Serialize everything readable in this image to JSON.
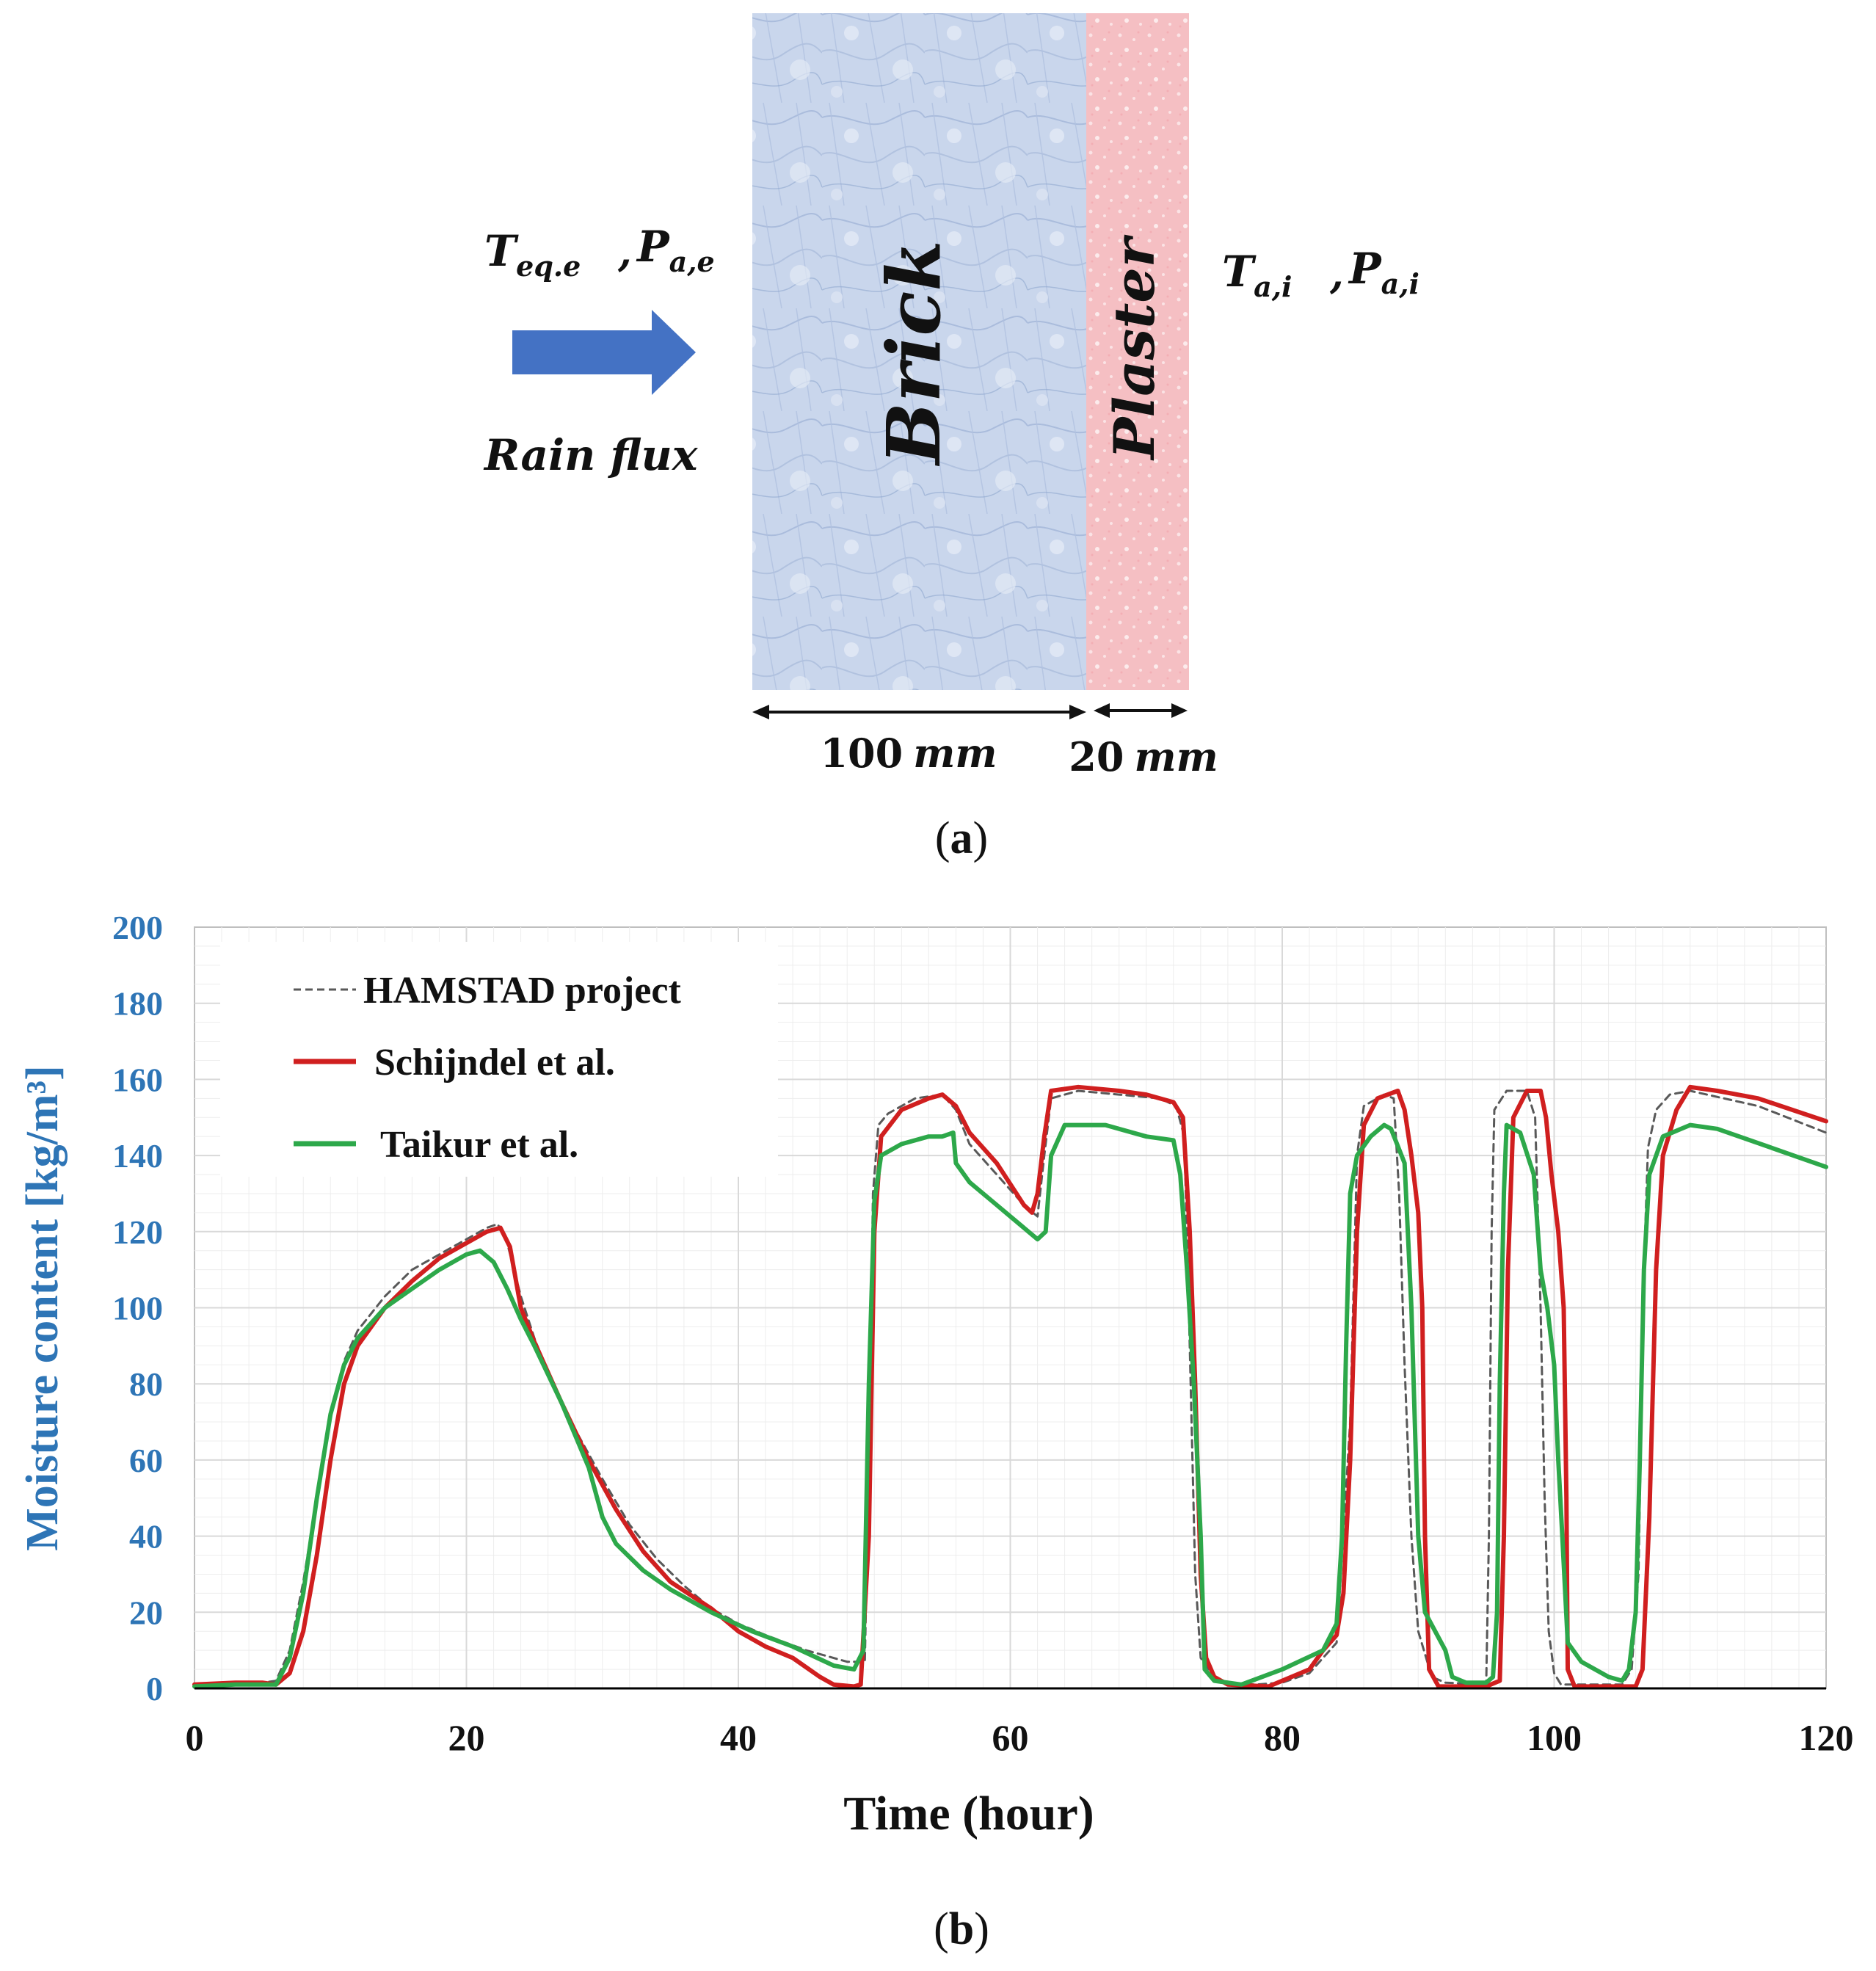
{
  "panel_a": {
    "caption_open": "(",
    "caption_letter": "a",
    "caption_close": ")",
    "ext_temp_symbol": "T",
    "ext_temp_sub": "eq.e",
    "ext_sep": ",",
    "ext_press_symbol": "P",
    "ext_press_sub": "a,e",
    "int_temp_symbol": "T",
    "int_temp_sub": "a,i",
    "int_sep": ",",
    "int_press_symbol": "P",
    "int_press_sub": "a,i",
    "rain_label": "Rain flux",
    "brick_label": "Brick",
    "plaster_label": "Plaster",
    "brick_thickness_value": "100",
    "brick_thickness_unit": "mm",
    "plaster_thickness_value": "20",
    "plaster_thickness_unit": "mm",
    "colors": {
      "arrow": "#4472C4",
      "brick": "#C5D2EA",
      "brick_texture": "#8FA6CF",
      "plaster": "#F6C3C6",
      "plaster_texture": "#FBE4E6"
    }
  },
  "panel_b": {
    "caption_open": "(",
    "caption_letter": "b",
    "caption_close": ")"
  },
  "chart_data": {
    "type": "line",
    "title": "",
    "xlabel": "Time (hour)",
    "ylabel": "Moisture content [kg/m³]",
    "xlim": [
      0,
      120
    ],
    "ylim": [
      0,
      200
    ],
    "xticks": [
      0,
      20,
      40,
      60,
      80,
      100,
      120
    ],
    "yticks": [
      0,
      20,
      40,
      60,
      80,
      100,
      120,
      140,
      160,
      180,
      200
    ],
    "grid": true,
    "legend_position": "top-left",
    "colors": {
      "ylabel": "#2E75B6",
      "yticks": "#2E75B6",
      "grid": "#D9D9D9"
    },
    "series": [
      {
        "name": "HAMSTAD project",
        "color": "#595959",
        "style": "dashed",
        "points": [
          [
            0,
            0.5
          ],
          [
            4,
            1
          ],
          [
            6,
            2
          ],
          [
            7,
            10
          ],
          [
            8,
            28
          ],
          [
            9,
            50
          ],
          [
            10,
            72
          ],
          [
            11,
            86
          ],
          [
            12,
            94
          ],
          [
            14,
            103
          ],
          [
            16,
            110
          ],
          [
            18,
            114
          ],
          [
            20,
            118
          ],
          [
            21.5,
            121
          ],
          [
            22.3,
            122
          ],
          [
            23,
            117
          ],
          [
            24,
            103
          ],
          [
            25,
            92
          ],
          [
            26,
            83
          ],
          [
            28,
            68
          ],
          [
            30,
            55
          ],
          [
            32,
            43
          ],
          [
            34,
            34
          ],
          [
            36,
            27
          ],
          [
            38,
            21
          ],
          [
            40,
            17
          ],
          [
            42,
            14
          ],
          [
            45,
            10
          ],
          [
            48,
            7
          ],
          [
            49.3,
            7
          ],
          [
            49.6,
            60
          ],
          [
            49.9,
            130
          ],
          [
            50.3,
            148
          ],
          [
            51,
            151
          ],
          [
            53,
            155
          ],
          [
            55,
            156
          ],
          [
            56,
            152
          ],
          [
            57,
            143
          ],
          [
            59,
            135
          ],
          [
            61,
            127
          ],
          [
            62,
            124
          ],
          [
            62.5,
            140
          ],
          [
            63,
            155
          ],
          [
            65,
            157
          ],
          [
            68,
            156
          ],
          [
            71,
            155
          ],
          [
            72.2,
            153
          ],
          [
            72.8,
            145
          ],
          [
            73.2,
            90
          ],
          [
            73.6,
            30
          ],
          [
            74,
            8
          ],
          [
            75,
            3
          ],
          [
            76,
            1.5
          ],
          [
            78,
            1
          ],
          [
            80,
            1.5
          ],
          [
            82,
            4
          ],
          [
            84,
            12
          ],
          [
            85,
            70
          ],
          [
            85.5,
            140
          ],
          [
            86,
            153
          ],
          [
            87.5,
            156
          ],
          [
            88.2,
            155
          ],
          [
            88.6,
            130
          ],
          [
            89,
            85
          ],
          [
            89.5,
            40
          ],
          [
            90,
            15
          ],
          [
            91,
            3
          ],
          [
            92,
            1.5
          ],
          [
            95,
            1
          ],
          [
            95.2,
            40
          ],
          [
            95.4,
            120
          ],
          [
            95.6,
            152
          ],
          [
            96.5,
            157
          ],
          [
            98,
            157
          ],
          [
            98.6,
            150
          ],
          [
            99,
            100
          ],
          [
            99.3,
            50
          ],
          [
            99.6,
            15
          ],
          [
            100,
            4
          ],
          [
            100.5,
            1
          ],
          [
            105,
            1
          ],
          [
            105.7,
            5
          ],
          [
            106.2,
            30
          ],
          [
            106.6,
            110
          ],
          [
            106.9,
            142
          ],
          [
            107.5,
            152
          ],
          [
            108.5,
            156
          ],
          [
            110,
            157
          ],
          [
            115,
            153
          ],
          [
            120,
            146
          ]
        ]
      },
      {
        "name": "Schijndel et al.",
        "color": "#D01F1F",
        "style": "solid",
        "points": [
          [
            0,
            1
          ],
          [
            3,
            1.5
          ],
          [
            5,
            1.5
          ],
          [
            6,
            1
          ],
          [
            7,
            4
          ],
          [
            8,
            15
          ],
          [
            9,
            35
          ],
          [
            10,
            60
          ],
          [
            11,
            80
          ],
          [
            12,
            90
          ],
          [
            14,
            100
          ],
          [
            16,
            107
          ],
          [
            18,
            113
          ],
          [
            20,
            117
          ],
          [
            21.5,
            120
          ],
          [
            22.5,
            121
          ],
          [
            23.2,
            116
          ],
          [
            24,
            100
          ],
          [
            25,
            91
          ],
          [
            27,
            75
          ],
          [
            29,
            60
          ],
          [
            31,
            47
          ],
          [
            33,
            36
          ],
          [
            35,
            28
          ],
          [
            38,
            21
          ],
          [
            40,
            15
          ],
          [
            42,
            11
          ],
          [
            44,
            8
          ],
          [
            46,
            3
          ],
          [
            47,
            1
          ],
          [
            48.5,
            0.5
          ],
          [
            49,
            1
          ],
          [
            49.6,
            40
          ],
          [
            50,
            120
          ],
          [
            50.5,
            145
          ],
          [
            52,
            152
          ],
          [
            54,
            155
          ],
          [
            55,
            156
          ],
          [
            56,
            153
          ],
          [
            57,
            146
          ],
          [
            59,
            138
          ],
          [
            61,
            127
          ],
          [
            61.6,
            125
          ],
          [
            62,
            130
          ],
          [
            62.5,
            145
          ],
          [
            63,
            157
          ],
          [
            65,
            158
          ],
          [
            68,
            157
          ],
          [
            70,
            156
          ],
          [
            72,
            154
          ],
          [
            72.7,
            150
          ],
          [
            73.2,
            120
          ],
          [
            73.6,
            80
          ],
          [
            74,
            30
          ],
          [
            74.4,
            8
          ],
          [
            75,
            3
          ],
          [
            76,
            1
          ],
          [
            79,
            0.5
          ],
          [
            82,
            5
          ],
          [
            83,
            10
          ],
          [
            84,
            14
          ],
          [
            84.5,
            25
          ],
          [
            85,
            60
          ],
          [
            85.5,
            120
          ],
          [
            86,
            148
          ],
          [
            87,
            155
          ],
          [
            88.5,
            157
          ],
          [
            89,
            152
          ],
          [
            89.5,
            140
          ],
          [
            90,
            125
          ],
          [
            90.3,
            100
          ],
          [
            90.5,
            40
          ],
          [
            90.8,
            5
          ],
          [
            91.5,
            0.5
          ],
          [
            95,
            0.5
          ],
          [
            96,
            2
          ],
          [
            96.3,
            40
          ],
          [
            96.6,
            110
          ],
          [
            97,
            150
          ],
          [
            98,
            157
          ],
          [
            99,
            157
          ],
          [
            99.4,
            150
          ],
          [
            99.8,
            135
          ],
          [
            100.3,
            120
          ],
          [
            100.7,
            100
          ],
          [
            100.9,
            50
          ],
          [
            101,
            5
          ],
          [
            101.5,
            0.5
          ],
          [
            106,
            0.5
          ],
          [
            106.5,
            5
          ],
          [
            107,
            45
          ],
          [
            107.5,
            110
          ],
          [
            108,
            140
          ],
          [
            109,
            152
          ],
          [
            110,
            158
          ],
          [
            112,
            157
          ],
          [
            115,
            155
          ],
          [
            120,
            149
          ]
        ]
      },
      {
        "name": "Taikur et al.",
        "color": "#2DA84A",
        "style": "solid",
        "points": [
          [
            0,
            0.5
          ],
          [
            3,
            1
          ],
          [
            5,
            1
          ],
          [
            6,
            1
          ],
          [
            7,
            8
          ],
          [
            8,
            25
          ],
          [
            9,
            50
          ],
          [
            10,
            72
          ],
          [
            11,
            85
          ],
          [
            12,
            92
          ],
          [
            14,
            100
          ],
          [
            16,
            105
          ],
          [
            18,
            110
          ],
          [
            20,
            114
          ],
          [
            21,
            115
          ],
          [
            22,
            112
          ],
          [
            23,
            105
          ],
          [
            24,
            97
          ],
          [
            25,
            90
          ],
          [
            27,
            75
          ],
          [
            29,
            58
          ],
          [
            30,
            45
          ],
          [
            31,
            38
          ],
          [
            33,
            31
          ],
          [
            35,
            26
          ],
          [
            38,
            20
          ],
          [
            41,
            15
          ],
          [
            44,
            11
          ],
          [
            47,
            6
          ],
          [
            48.5,
            5
          ],
          [
            49.2,
            10
          ],
          [
            49.6,
            80
          ],
          [
            50,
            128
          ],
          [
            50.5,
            140
          ],
          [
            52,
            143
          ],
          [
            54,
            145
          ],
          [
            55,
            145
          ],
          [
            55.8,
            146
          ],
          [
            56,
            138
          ],
          [
            57,
            133
          ],
          [
            59,
            127
          ],
          [
            61,
            121
          ],
          [
            62,
            118
          ],
          [
            62.6,
            120
          ],
          [
            63,
            140
          ],
          [
            64,
            148
          ],
          [
            67,
            148
          ],
          [
            70,
            145
          ],
          [
            72,
            144
          ],
          [
            72.5,
            135
          ],
          [
            73,
            110
          ],
          [
            73.5,
            80
          ],
          [
            74,
            40
          ],
          [
            74.3,
            5
          ],
          [
            75,
            2
          ],
          [
            77,
            1
          ],
          [
            80,
            5
          ],
          [
            83,
            10
          ],
          [
            84,
            17
          ],
          [
            84.4,
            40
          ],
          [
            84.7,
            90
          ],
          [
            85,
            130
          ],
          [
            85.5,
            140
          ],
          [
            86.5,
            145
          ],
          [
            87.5,
            148
          ],
          [
            88,
            147
          ],
          [
            89,
            138
          ],
          [
            89.5,
            100
          ],
          [
            90,
            40
          ],
          [
            90.5,
            20
          ],
          [
            92,
            10
          ],
          [
            92.5,
            3
          ],
          [
            93.5,
            1.5
          ],
          [
            95,
            1.5
          ],
          [
            95.5,
            3
          ],
          [
            95.8,
            20
          ],
          [
            96,
            80
          ],
          [
            96.3,
            130
          ],
          [
            96.5,
            148
          ],
          [
            97.5,
            146
          ],
          [
            98.5,
            135
          ],
          [
            99,
            110
          ],
          [
            99.5,
            100
          ],
          [
            100,
            85
          ],
          [
            100.3,
            60
          ],
          [
            100.6,
            40
          ],
          [
            101,
            12
          ],
          [
            102,
            7
          ],
          [
            104,
            3
          ],
          [
            105,
            2
          ],
          [
            105.5,
            5
          ],
          [
            106,
            20
          ],
          [
            106.3,
            60
          ],
          [
            106.6,
            110
          ],
          [
            107,
            135
          ],
          [
            108,
            145
          ],
          [
            110,
            148
          ],
          [
            112,
            147
          ],
          [
            116,
            142
          ],
          [
            120,
            137
          ]
        ]
      }
    ]
  }
}
